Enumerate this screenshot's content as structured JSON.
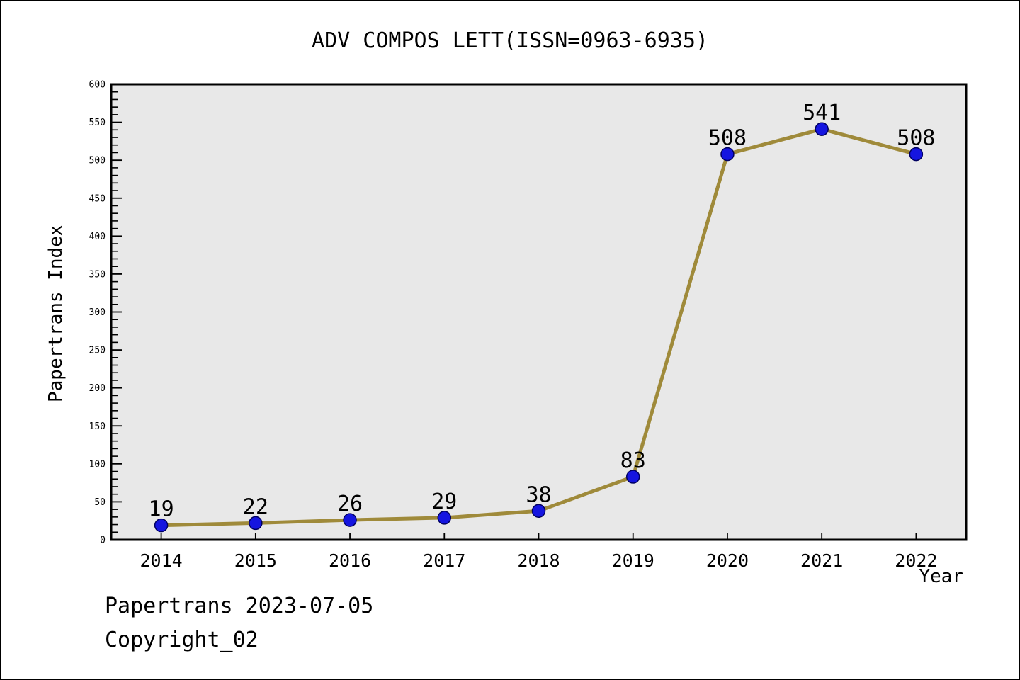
{
  "title": "ADV COMPOS LETT(ISSN=0963-6935)",
  "footer": {
    "date_line": "Papertrans 2023-07-05",
    "copyright_line": "Copyright_02"
  },
  "chart_data": {
    "type": "line",
    "title": "ADV COMPOS LETT(ISSN=0963-6935)",
    "xlabel": "Year",
    "ylabel": "Papertrans Index",
    "x": [
      2014,
      2015,
      2016,
      2017,
      2018,
      2019,
      2020,
      2021,
      2022
    ],
    "values": [
      19,
      22,
      26,
      29,
      38,
      83,
      508,
      541,
      508
    ],
    "point_labels": [
      "19",
      "22",
      "26",
      "29",
      "38",
      "83",
      "508",
      "541",
      "508"
    ],
    "ylim": [
      0,
      600
    ],
    "xlim": [
      2013.47,
      2022.53
    ],
    "y_major_tick_step": 50,
    "y_minor_tick_step": 10,
    "grid": false,
    "legend": false,
    "colors": {
      "line": "#9F8A3A",
      "marker_fill": "#1515E0",
      "marker_edge": "#000060",
      "plot_background": "#E8E8E8",
      "frame": "#000000",
      "text": "#000000"
    }
  }
}
